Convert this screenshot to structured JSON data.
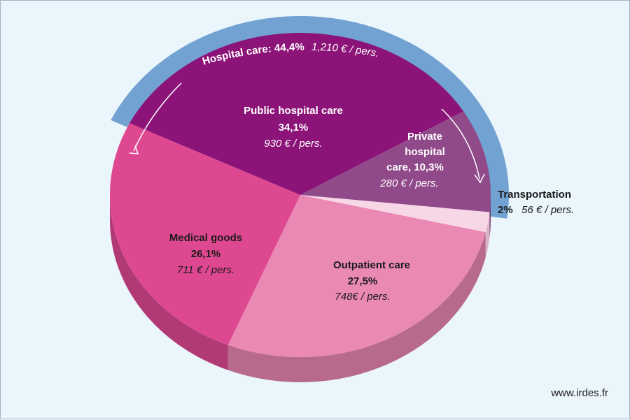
{
  "chart_data": {
    "type": "pie",
    "style": "3d",
    "slices": [
      {
        "name": "Public hospital care",
        "value": 34.1,
        "value_label": "34,1%",
        "per_person": "930 € / pers.",
        "color": "#8c1478",
        "side_color": "#6e0f5e"
      },
      {
        "name": "Private hospital care",
        "value": 10.3,
        "value_label": "care, 10,3%",
        "per_person": "280 € / pers.",
        "color": "#904a8a",
        "side_color": "#733a6e"
      },
      {
        "name": "Transportation",
        "value": 2,
        "value_label": "2%",
        "per_person": "56 € / pers.",
        "color": "#f7d6e6",
        "side_color": "#d9b4c6"
      },
      {
        "name": "Outpatient care",
        "value": 27.5,
        "value_label": "27,5%",
        "per_person": "748€ / pers.",
        "color": "#ea8ab4",
        "side_color": "#b76a8e"
      },
      {
        "name": "Medical goods",
        "value": 26.1,
        "value_label": "26,1%",
        "per_person": "711 € / pers.",
        "color": "#de4890",
        "side_color": "#b13a74"
      }
    ],
    "private_label_lines": [
      "Private",
      "hospital"
    ],
    "group": {
      "label": "Hospital care: 44,4%",
      "per_person": "1,210 € / pers.",
      "color": "#72a2d2"
    }
  },
  "credit": "www.irdes.fr"
}
